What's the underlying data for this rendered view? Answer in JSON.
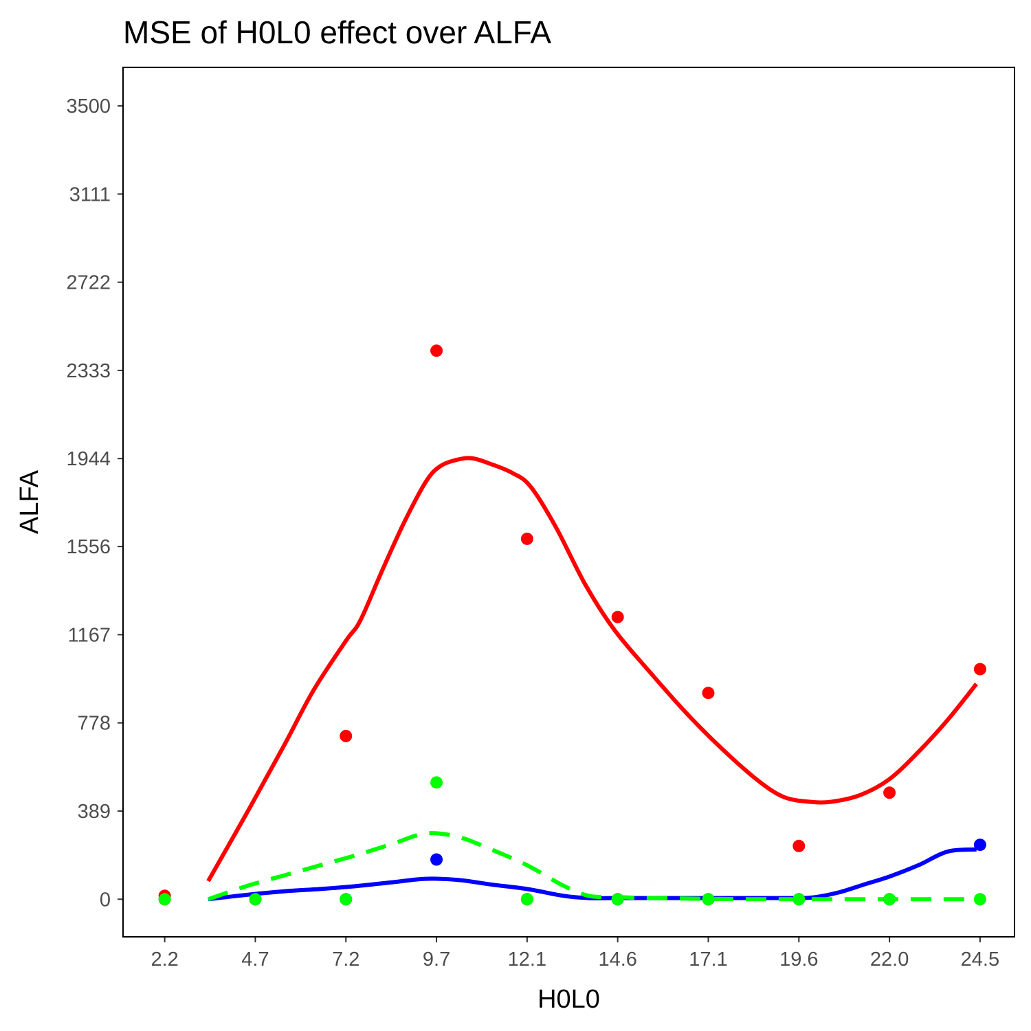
{
  "chart_data": {
    "type": "scatter",
    "title": "MSE of H0L0 effect over  ALFA",
    "xlabel": "H0L0",
    "ylabel": "ALFA",
    "xlim": [
      1.05,
      25.65
    ],
    "ylim": [
      -166,
      3670
    ],
    "x_ticks": [
      "2.2",
      "4.7",
      "7.2",
      "9.7",
      "12.1",
      "14.6",
      "17.1",
      "19.6",
      "22.0",
      "24.5"
    ],
    "y_ticks": [
      "0",
      "389",
      "778",
      "1167",
      "1556",
      "1944",
      "2333",
      "2722",
      "3111",
      "3500"
    ],
    "x": [
      2.2,
      4.7,
      7.2,
      9.7,
      12.2,
      14.7,
      17.2,
      19.7,
      22.2,
      24.7
    ],
    "series": [
      {
        "name": "red",
        "color": "#ff0000",
        "points": [
          15,
          null,
          720,
          2420,
          1590,
          1245,
          910,
          235,
          470,
          1015
        ],
        "smooth": {
          "style": "solid",
          "x": [
            3.4,
            4.5,
            5.5,
            6.3,
            7.2,
            7.6,
            8.2,
            8.8,
            9.4,
            9.8,
            10.3,
            10.7,
            11.2,
            11.8,
            12.3,
            13.0,
            13.8,
            14.6,
            15.6,
            16.6,
            17.6,
            18.6,
            19.3,
            20.0,
            20.6,
            21.4,
            22.2,
            23.0,
            23.8,
            24.6
          ],
          "y": [
            80,
            390,
            680,
            920,
            1140,
            1230,
            1450,
            1660,
            1840,
            1910,
            1940,
            1945,
            1920,
            1880,
            1820,
            1640,
            1390,
            1190,
            1000,
            820,
            660,
            520,
            450,
            430,
            430,
            460,
            530,
            650,
            790,
            950
          ]
        }
      },
      {
        "name": "blue",
        "color": "#0000ff",
        "points": [
          0,
          0,
          0,
          175,
          0,
          0,
          0,
          0,
          0,
          240
        ],
        "smooth": {
          "style": "solid",
          "x": [
            3.4,
            4.5,
            5.5,
            6.5,
            7.5,
            8.5,
            9.4,
            10.3,
            11.2,
            12.2,
            13.2,
            13.9,
            14.6,
            15.5,
            16.5,
            17.5,
            18.5,
            19.5,
            20.1,
            20.8,
            21.5,
            22.2,
            23.0,
            23.8,
            24.6
          ],
          "y": [
            0,
            20,
            35,
            45,
            58,
            75,
            90,
            85,
            65,
            45,
            15,
            5,
            5,
            5,
            5,
            5,
            5,
            5,
            8,
            30,
            65,
            100,
            150,
            210,
            220
          ]
        }
      },
      {
        "name": "green",
        "color": "#00ff00",
        "points": [
          0,
          0,
          0,
          515,
          0,
          0,
          0,
          0,
          0,
          0
        ],
        "smooth": {
          "style": "dashed",
          "x": [
            3.4,
            4.5,
            5.5,
            6.5,
            7.5,
            8.5,
            9.4,
            10.3,
            11.2,
            12.2,
            13.2,
            13.9,
            14.6,
            15.5,
            16.5,
            17.5,
            18.5,
            19.5,
            20.5,
            21.5,
            22.5,
            23.5,
            24.6
          ],
          "y": [
            0,
            60,
            105,
            150,
            195,
            245,
            290,
            275,
            220,
            150,
            60,
            15,
            10,
            5,
            3,
            1,
            0,
            0,
            0,
            0,
            0,
            0,
            0
          ]
        }
      }
    ]
  }
}
